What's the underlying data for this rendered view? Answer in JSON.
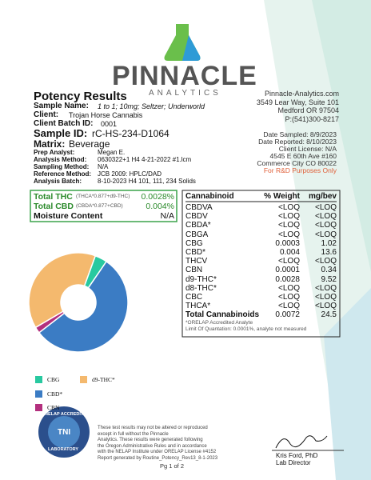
{
  "logo": {
    "name": "PINNACLE",
    "tagline": "ANALYTICS"
  },
  "header": {
    "title": "Potency Results",
    "sample_name_label": "Sample Name:",
    "sample_name": "1 to 1; 10mg; Seltzer; Underworld",
    "client_label": "Client:",
    "client": "Trojan Horse Cannabis",
    "batch_label": "Client Batch ID:",
    "batch": "0001"
  },
  "lab_address": [
    "Pinnacle-Analytics.com",
    "3549 Lear Way, Suite 101",
    "Medford OR 97504",
    "P:(541)300-8217"
  ],
  "sample": {
    "id_label": "Sample ID:",
    "id": "rC-HS-234-D1064",
    "matrix_label": "Matrix:",
    "matrix": "Beverage",
    "fields": [
      [
        "Prep Analyst:",
        "Megan E."
      ],
      [
        "Analysis Method:",
        "0630322+1 H4 4-21-2022 #1.lcm"
      ],
      [
        "Sampling Method:",
        "N/A"
      ],
      [
        "Reference Method:",
        "JCB 2009: HPLC/DAD"
      ],
      [
        "Analysis Batch:",
        "8-10-2023 H4 101, 111, 234 Solids"
      ]
    ]
  },
  "dates": {
    "lines": [
      "Date Sampled: 8/9/2023",
      "Date Reported: 8/10/2023",
      "Client License: N/A",
      "4545 E 60th Ave #160",
      "Commerce City CO 80022"
    ],
    "note": "For R&D Purposes Only"
  },
  "totals": [
    {
      "label": "Total THC",
      "formula": "(THCA*0.877+d9-THC)",
      "value": "0.0028%"
    },
    {
      "label": "Total CBD",
      "formula": "(CBDA*0.877+CBD)",
      "value": "0.004%"
    },
    {
      "label": "Moisture Content",
      "formula": "",
      "value": "N/A"
    }
  ],
  "table": {
    "header": [
      "Cannabinoid",
      "% Weight",
      "mg/bev"
    ],
    "rows": [
      [
        "CBDVA",
        "<LOQ",
        "<LOQ"
      ],
      [
        "CBDV",
        "<LOQ",
        "<LOQ"
      ],
      [
        "CBDA*",
        "<LOQ",
        "<LOQ"
      ],
      [
        "CBGA",
        "<LOQ",
        "<LOQ"
      ],
      [
        "CBG",
        "0.0003",
        "1.02"
      ],
      [
        "CBD*",
        "0.004",
        "13.6"
      ],
      [
        "THCV",
        "<LOQ",
        "<LOQ"
      ],
      [
        "CBN",
        "0.0001",
        "0.34"
      ],
      [
        "d9-THC*",
        "0.0028",
        "9.52"
      ],
      [
        "d8-THC*",
        "<LOQ",
        "<LOQ"
      ],
      [
        "CBC",
        "<LOQ",
        "<LOQ"
      ],
      [
        "THCA*",
        "<LOQ",
        "<LOQ"
      ]
    ],
    "total": [
      "Total Cannabinoids",
      "0.0072",
      "24.5"
    ],
    "notes": [
      "*ORELAP Accredited Analyte",
      "Limit Of Quantation: 0.0001%, analyte not measured"
    ]
  },
  "chart_data": {
    "type": "pie",
    "categories": [
      "CBG",
      "CBD*",
      "CBN",
      "d9-THC*"
    ],
    "values": [
      4,
      55,
      2,
      39
    ],
    "colors": [
      "#28c9a0",
      "#3b7cc4",
      "#b3307e",
      "#f4b96e"
    ]
  },
  "footer": {
    "badge": [
      "NELAP ACCREDITED",
      "TNI",
      "LABORATORY"
    ],
    "disclaimer": [
      "These test results may not be altered or reproduced",
      "except in full without the Pinnacle",
      "Analytics. These results were generated following",
      "the Oregon Administrative Rules and in accordance",
      "with the NELAP Institute under ORELAP License #4152",
      "Report generated by Routine_Potency_Rev13_8-1-2023"
    ],
    "signer": "Kris Ford, PhD",
    "signer_title": "Lab Director",
    "page": "Pg 1 of 2"
  }
}
